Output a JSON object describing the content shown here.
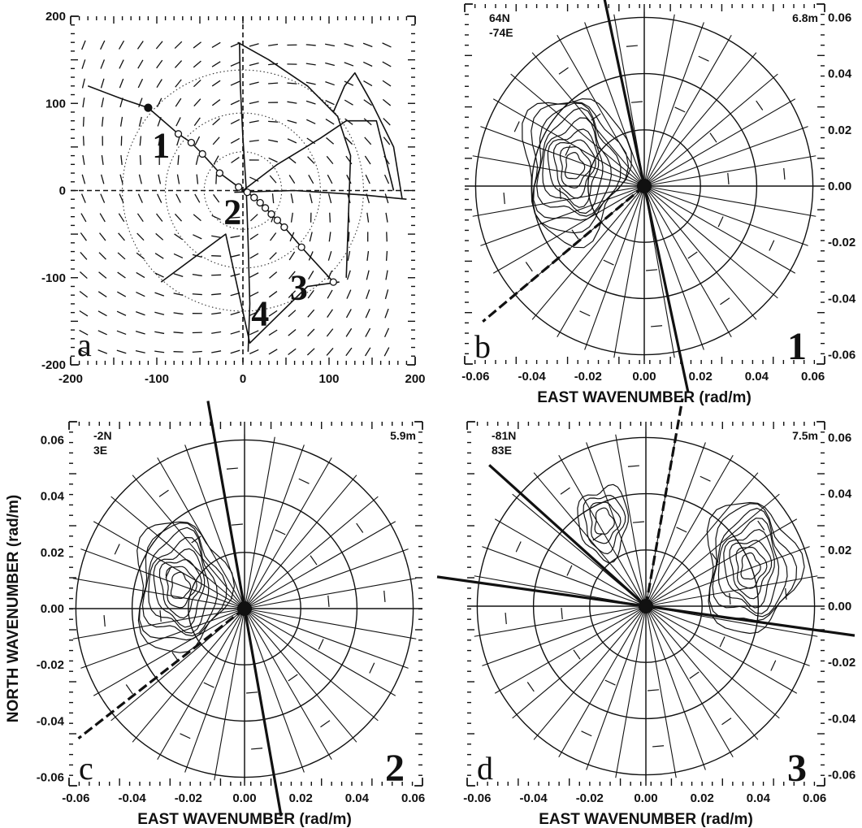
{
  "chart_data": [
    {
      "panel": "a",
      "type": "line",
      "panel_letter": "a",
      "xlim": [
        -200,
        200
      ],
      "ylim": [
        -200,
        200
      ],
      "x_ticks": [
        "-200",
        "-100",
        "0",
        "100",
        "200"
      ],
      "y_ticks": [
        "200",
        "100",
        "0",
        "-100",
        "-200"
      ],
      "grid": false,
      "series": [
        {
          "x": [
            6,
            8,
            6,
            4,
            0,
            -3,
            -4
          ],
          "y": [
            -185,
            -130,
            -60,
            0,
            60,
            120,
            170
          ]
        },
        {
          "x": [
            -10,
            60,
            140,
            190
          ],
          "y": [
            -2,
            0,
            -5,
            -10
          ]
        },
        {
          "x": [
            -6,
            30,
            75,
            110,
            125,
            120
          ],
          "y": [
            170,
            150,
            120,
            85,
            40,
            -100
          ]
        },
        {
          "x": [
            105,
            118,
            130,
            150,
            175,
            185
          ],
          "y": [
            90,
            120,
            135,
            100,
            50,
            -10
          ]
        },
        {
          "x": [
            0,
            40,
            90,
            120,
            155,
            175
          ],
          "y": [
            0,
            30,
            60,
            80,
            80,
            0
          ]
        },
        {
          "x": [
            -95,
            -20,
            8,
            75,
            112
          ],
          "y": [
            -105,
            -50,
            -175,
            -110,
            -105
          ]
        }
      ],
      "track": {
        "x": [
          -110,
          -75,
          -60,
          -47,
          -27,
          -5,
          5,
          13,
          20,
          26,
          33,
          40,
          48,
          68,
          105
        ],
        "y": [
          95,
          65,
          55,
          42,
          20,
          4,
          -2,
          -8,
          -14,
          -20,
          -27,
          -34,
          -42,
          -65,
          -105
        ]
      },
      "track_start": {
        "x": [
          -180,
          -140,
          -110
        ],
        "y": [
          120,
          105,
          95
        ]
      },
      "track_points": [
        "1",
        "2",
        "3",
        "4"
      ]
    },
    {
      "panel": "b",
      "type": "polar-contour",
      "panel_letter": "b",
      "panel_number": "1",
      "location": [
        "64N",
        "-74E"
      ],
      "height": "6.8m",
      "xlabel": "EAST WAVENUMBER (rad/m)",
      "x_ticks": [
        "-0.06",
        "-0.04",
        "-0.02",
        "0.00",
        "0.02",
        "0.04",
        "0.06"
      ],
      "y_ticks": [
        "0.06",
        "0.04",
        "0.02",
        "0.00",
        "-0.02",
        "-0.04",
        "-0.06"
      ],
      "xlim": [
        -0.07,
        0.07
      ],
      "ylim": [
        -0.07,
        0.07
      ],
      "peaks": [
        {
          "kx": -0.025,
          "ky": 0.007,
          "levels": 9
        }
      ],
      "heavy_lines": [
        {
          "angle_deg": 102
        },
        {
          "angle_deg": 220
        }
      ]
    },
    {
      "panel": "c",
      "type": "polar-contour",
      "panel_letter": "c",
      "panel_number": "2",
      "location": [
        "-2N",
        "3E"
      ],
      "height": "5.9m",
      "xlabel": "EAST WAVENUMBER (rad/m)",
      "ylabel": "NORTH WAVENUMBER (rad/m)",
      "x_ticks": [
        "-0.06",
        "-0.04",
        "-0.02",
        "0.00",
        "0.02",
        "0.04",
        "0.06"
      ],
      "y_ticks": [
        "0.06",
        "0.04",
        "0.02",
        "0.00",
        "-0.02",
        "-0.04",
        "-0.06"
      ],
      "xlim": [
        -0.07,
        0.07
      ],
      "ylim": [
        -0.07,
        0.07
      ],
      "peaks": [
        {
          "kx": -0.023,
          "ky": 0.008,
          "levels": 8
        }
      ],
      "heavy_lines": [
        {
          "angle_deg": 100
        },
        {
          "angle_deg": 218
        }
      ]
    },
    {
      "panel": "d",
      "type": "polar-contour",
      "panel_letter": "d",
      "panel_number": "3",
      "location": [
        "-81N",
        "83E"
      ],
      "height": "7.5m",
      "xlabel": "EAST WAVENUMBER (rad/m)",
      "x_ticks": [
        "-0.06",
        "-0.04",
        "-0.02",
        "0.00",
        "0.02",
        "0.04",
        "0.06"
      ],
      "y_ticks": [
        "0.06",
        "0.04",
        "0.02",
        "0.00",
        "-0.02",
        "-0.04",
        "-0.06"
      ],
      "xlim": [
        -0.07,
        0.07
      ],
      "ylim": [
        -0.07,
        0.07
      ],
      "peaks": [
        {
          "kx": 0.037,
          "ky": 0.014,
          "levels": 8
        },
        {
          "kx": -0.015,
          "ky": 0.03,
          "levels": 4
        }
      ],
      "heavy_lines": [
        {
          "angle_deg": 172
        },
        {
          "angle_deg": 80
        },
        {
          "angle_deg": 138
        }
      ]
    }
  ]
}
